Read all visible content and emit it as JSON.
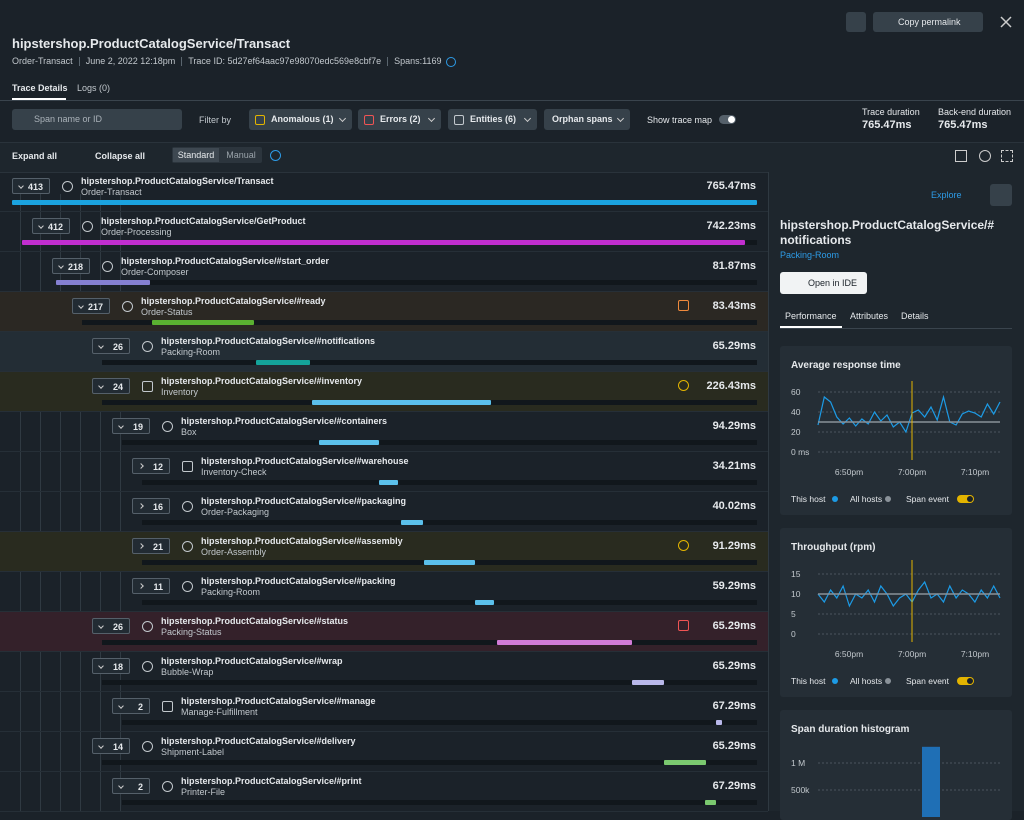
{
  "header": {
    "title": "hipstershop.ProductCatalogService/Transact",
    "meta": [
      "Order-Transact",
      "June 2, 2022 12:18pm",
      "Trace ID: 5d27ef64aac97e98070edc569e8cbf7e",
      "Spans:1169"
    ],
    "actions": [
      "Copy permalink"
    ]
  },
  "tabs": [
    "Trace Details",
    "Logs (0)"
  ],
  "filters": {
    "search": "Span name or ID",
    "label": "Filter by",
    "chips": [
      "Anomalous (1)",
      "Errors (2)",
      "Entities (6)",
      "Orphan spans"
    ],
    "toggle": "Show trace map"
  },
  "durations": [
    {
      "label": "Trace duration",
      "value": "765.47ms"
    },
    {
      "label": "Back-end duration",
      "value": "765.47ms"
    }
  ],
  "toolbar": {
    "expand": "Expand all",
    "collapse": "Collapse all",
    "modes": [
      "Standard",
      "Manual"
    ]
  },
  "spans": [
    {
      "count": 413,
      "name": "hipstershop.ProductCatalogService/Transact",
      "service": "Order-Transact",
      "duration": "765.47ms"
    },
    {
      "count": 412,
      "name": "hipstershop.ProductCatalogService/GetProduct",
      "service": "Order-Processing",
      "duration": "742.23ms"
    },
    {
      "count": 218,
      "name": "hipstershop.ProductCatalogService/#start_order",
      "service": "Order-Composer",
      "duration": "81.87ms"
    },
    {
      "count": 217,
      "name": "hipstershop.ProductCatalogService/#ready",
      "service": "Order-Status",
      "duration": "83.43ms"
    },
    {
      "count": 26,
      "name": "hipstershop.ProductCatalogService/#notifications",
      "service": "Packing-Room",
      "duration": "65.29ms"
    },
    {
      "count": 24,
      "name": "hipstershop.ProductCatalogService/#inventory",
      "service": "Inventory",
      "duration": "226.43ms"
    },
    {
      "count": 19,
      "name": "hipstershop.ProductCatalogService/#containers",
      "service": "Box",
      "duration": "94.29ms"
    },
    {
      "count": 12,
      "name": "hipstershop.ProductCatalogService/#warehouse",
      "service": "Inventory-Check",
      "duration": "34.21ms"
    },
    {
      "count": 16,
      "name": "hipstershop.ProductCatalogService/#packaging",
      "service": "Order-Packaging",
      "duration": "40.02ms"
    },
    {
      "count": 21,
      "name": "hipstershop.ProductCatalogService/#assembly",
      "service": "Order-Assembly",
      "duration": "91.29ms"
    },
    {
      "count": 11,
      "name": "hipstershop.ProductCatalogService/#packing",
      "service": "Packing-Room",
      "duration": "59.29ms"
    },
    {
      "count": 26,
      "name": "hipstershop.ProductCatalogService/#status",
      "service": "Packing-Status",
      "duration": "65.29ms"
    },
    {
      "count": 18,
      "name": "hipstershop.ProductCatalogService/#wrap",
      "service": "Bubble-Wrap",
      "duration": "65.29ms"
    },
    {
      "count": 2,
      "name": "hipstershop.ProductCatalogService/#manage",
      "service": "Manage-Fulfillment",
      "duration": "67.29ms"
    },
    {
      "count": 14,
      "name": "hipstershop.ProductCatalogService/#delivery",
      "service": "Shipment-Label",
      "duration": "65.29ms"
    },
    {
      "count": 2,
      "name": "hipstershop.ProductCatalogService/#print",
      "service": "Printer-File",
      "duration": "67.29ms"
    }
  ],
  "detail": {
    "explore": "Explore",
    "title": "hipstershop.ProductCatalogService/#notifications",
    "service": "Packing-Room",
    "button": "Open in IDE",
    "tabs": [
      "Performance",
      "Attributes",
      "Details"
    ]
  },
  "chart_data": [
    {
      "type": "line",
      "title": "Average response time",
      "ylim": [
        0,
        65
      ],
      "yticks": [
        60,
        40,
        20,
        {
          "value": 0,
          "label": "0 ms"
        }
      ],
      "xticks": [
        "6:50pm",
        "7:00pm",
        "7:10pm"
      ],
      "series": [
        {
          "name": "This host",
          "color": "#1c9be6",
          "values": [
            27,
            55,
            50,
            35,
            28,
            34,
            26,
            33,
            28,
            40,
            31,
            37,
            25,
            30,
            20,
            39,
            42,
            35,
            45,
            32,
            55,
            30,
            27,
            38,
            41,
            39,
            35,
            48,
            38,
            50
          ]
        },
        {
          "name": "All hosts",
          "color": "#8a9299",
          "values": [
            30
          ]
        }
      ],
      "events": [
        {
          "name": "Span event",
          "color": "#e3b400"
        }
      ]
    },
    {
      "type": "line",
      "title": "Throughput (rpm)",
      "ylim": [
        0,
        17
      ],
      "yticks": [
        15,
        10,
        5,
        0
      ],
      "xticks": [
        "6:50pm",
        "7:00pm",
        "7:10pm"
      ],
      "series": [
        {
          "name": "This host",
          "color": "#1c9be6",
          "values": [
            10,
            8,
            11,
            9,
            12,
            7,
            10,
            9,
            11,
            8,
            12,
            10,
            7,
            9,
            10,
            8,
            11,
            13,
            9,
            10,
            8,
            12,
            9,
            11,
            10,
            8,
            11,
            9,
            12,
            9
          ]
        },
        {
          "name": "All hosts",
          "color": "#8a9299",
          "values": [
            10
          ]
        }
      ],
      "events": [
        {
          "name": "Span event",
          "color": "#e3b400"
        }
      ]
    },
    {
      "type": "bar",
      "title": "Span duration histogram",
      "ylim": [
        0,
        1500000
      ],
      "yticks": [
        {
          "value": 1000000,
          "label": "1 M"
        },
        {
          "value": 500000,
          "label": "500k"
        }
      ],
      "categories": [
        null
      ],
      "values": [
        1300000
      ],
      "color": "#1f6fb5"
    }
  ]
}
